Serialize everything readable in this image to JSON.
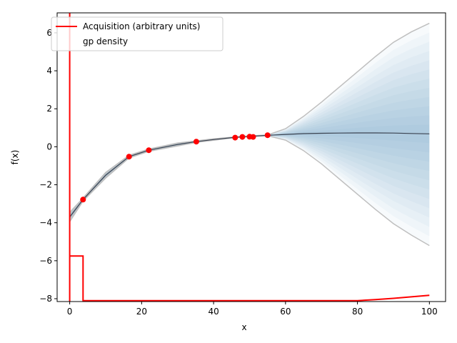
{
  "chart_data": {
    "type": "line",
    "title": "",
    "xlabel": "x",
    "ylabel": "f(x)",
    "xlim": [
      -3.5,
      104.5
    ],
    "ylim": [
      -8.15,
      7.05
    ],
    "grid": false,
    "legend_placement": "top-left",
    "x_ticks": [
      {
        "value": 0,
        "label": "0"
      },
      {
        "value": 20,
        "label": "20"
      },
      {
        "value": 40,
        "label": "40"
      },
      {
        "value": 60,
        "label": "60"
      },
      {
        "value": 80,
        "label": "80"
      },
      {
        "value": 100,
        "label": "100"
      }
    ],
    "y_ticks": [
      {
        "value": 6,
        "label": "6"
      },
      {
        "value": 4,
        "label": "4"
      },
      {
        "value": 2,
        "label": "2"
      },
      {
        "value": 0,
        "label": "0"
      },
      {
        "value": -2,
        "label": "−2"
      },
      {
        "value": -4,
        "label": "−4"
      },
      {
        "value": -6,
        "label": "−6"
      },
      {
        "value": -8,
        "label": "−8"
      }
    ],
    "series": [
      {
        "name": "Acquisition (arbitrary units)",
        "kind": "line",
        "color": "#ff0000",
        "x": [
          0,
          0,
          0,
          3.7,
          3.7,
          40,
          80,
          85,
          90,
          95,
          100
        ],
        "y": [
          7.2,
          -8.15,
          -5.75,
          -5.75,
          -8.1,
          -8.1,
          -8.1,
          -8.05,
          -7.98,
          -7.9,
          -7.82
        ]
      },
      {
        "name": "gp density",
        "kind": "density",
        "color": "#4f81bd",
        "x": [
          0,
          3.7,
          10,
          16.5,
          22,
          30,
          35.2,
          40,
          46,
          50,
          55,
          60,
          65,
          70,
          75,
          80,
          85,
          90,
          95,
          100
        ],
        "mean": [
          -3.7,
          -2.78,
          -1.5,
          -0.52,
          -0.18,
          0.12,
          0.27,
          0.38,
          0.5,
          0.55,
          0.6,
          0.65,
          0.69,
          0.71,
          0.72,
          0.73,
          0.73,
          0.72,
          0.7,
          0.68
        ],
        "upper": [
          -3.45,
          -2.7,
          -1.35,
          -0.45,
          -0.12,
          0.2,
          0.31,
          0.42,
          0.52,
          0.57,
          0.62,
          0.95,
          1.6,
          2.35,
          3.15,
          3.95,
          4.75,
          5.5,
          6.05,
          6.5
        ],
        "lower": [
          -3.95,
          -2.86,
          -1.65,
          -0.59,
          -0.24,
          0.04,
          0.23,
          0.34,
          0.48,
          0.53,
          0.58,
          0.35,
          -0.2,
          -0.9,
          -1.7,
          -2.5,
          -3.3,
          -4.05,
          -4.65,
          -5.2
        ]
      },
      {
        "name": "",
        "kind": "scatter",
        "color": "#ff0000",
        "x": [
          3.7,
          16.5,
          22,
          35.2,
          46,
          48,
          50,
          51,
          55
        ],
        "y": [
          -2.78,
          -0.52,
          -0.18,
          0.27,
          0.48,
          0.52,
          0.53,
          0.52,
          0.61
        ]
      }
    ]
  }
}
